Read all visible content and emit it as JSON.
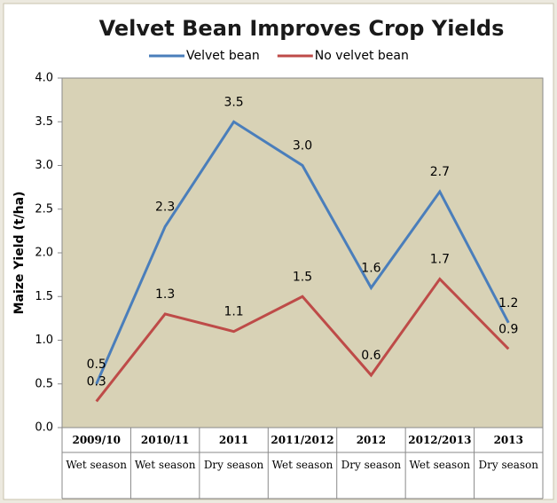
{
  "chart_data": {
    "type": "line",
    "title": "Velvet Bean Improves Crop Yields",
    "y_label": "Maize Yield (t/ha)",
    "categories": [
      "2009/10",
      "2010/11",
      "2011",
      "2011/2012",
      "2012",
      "2012/2013",
      "2013"
    ],
    "sub_categories": [
      "Wet season",
      "Wet season",
      "Dry season",
      "Wet season",
      "Dry season",
      "Wet season",
      "Dry season"
    ],
    "series": [
      {
        "name": "Velvet bean",
        "color": "#4a7ebb",
        "values": [
          0.5,
          2.3,
          3.5,
          3.0,
          1.6,
          2.7,
          1.2
        ],
        "value_labels": [
          "0.5",
          "2.3",
          "3.5",
          "3.0",
          "1.6",
          "2.7",
          "1.2"
        ]
      },
      {
        "name": "No velvet bean",
        "color": "#be4b48",
        "values": [
          0.3,
          1.3,
          1.1,
          1.5,
          0.6,
          1.7,
          0.9
        ],
        "value_labels": [
          "0.3",
          "1.3",
          "1.1",
          "1.5",
          "0.6",
          "1.7",
          "0.9"
        ]
      }
    ],
    "ylim": [
      0,
      4
    ],
    "yticks": [
      {
        "value": 0,
        "label": "0.0"
      },
      0.5,
      {
        "value": 1,
        "label": "1.0"
      },
      1.5,
      {
        "value": 2,
        "label": "2.0"
      },
      2.5,
      {
        "value": 3,
        "label": "3.0"
      },
      3.5,
      {
        "value": 4,
        "label": "4.0"
      }
    ],
    "legend": "top"
  }
}
